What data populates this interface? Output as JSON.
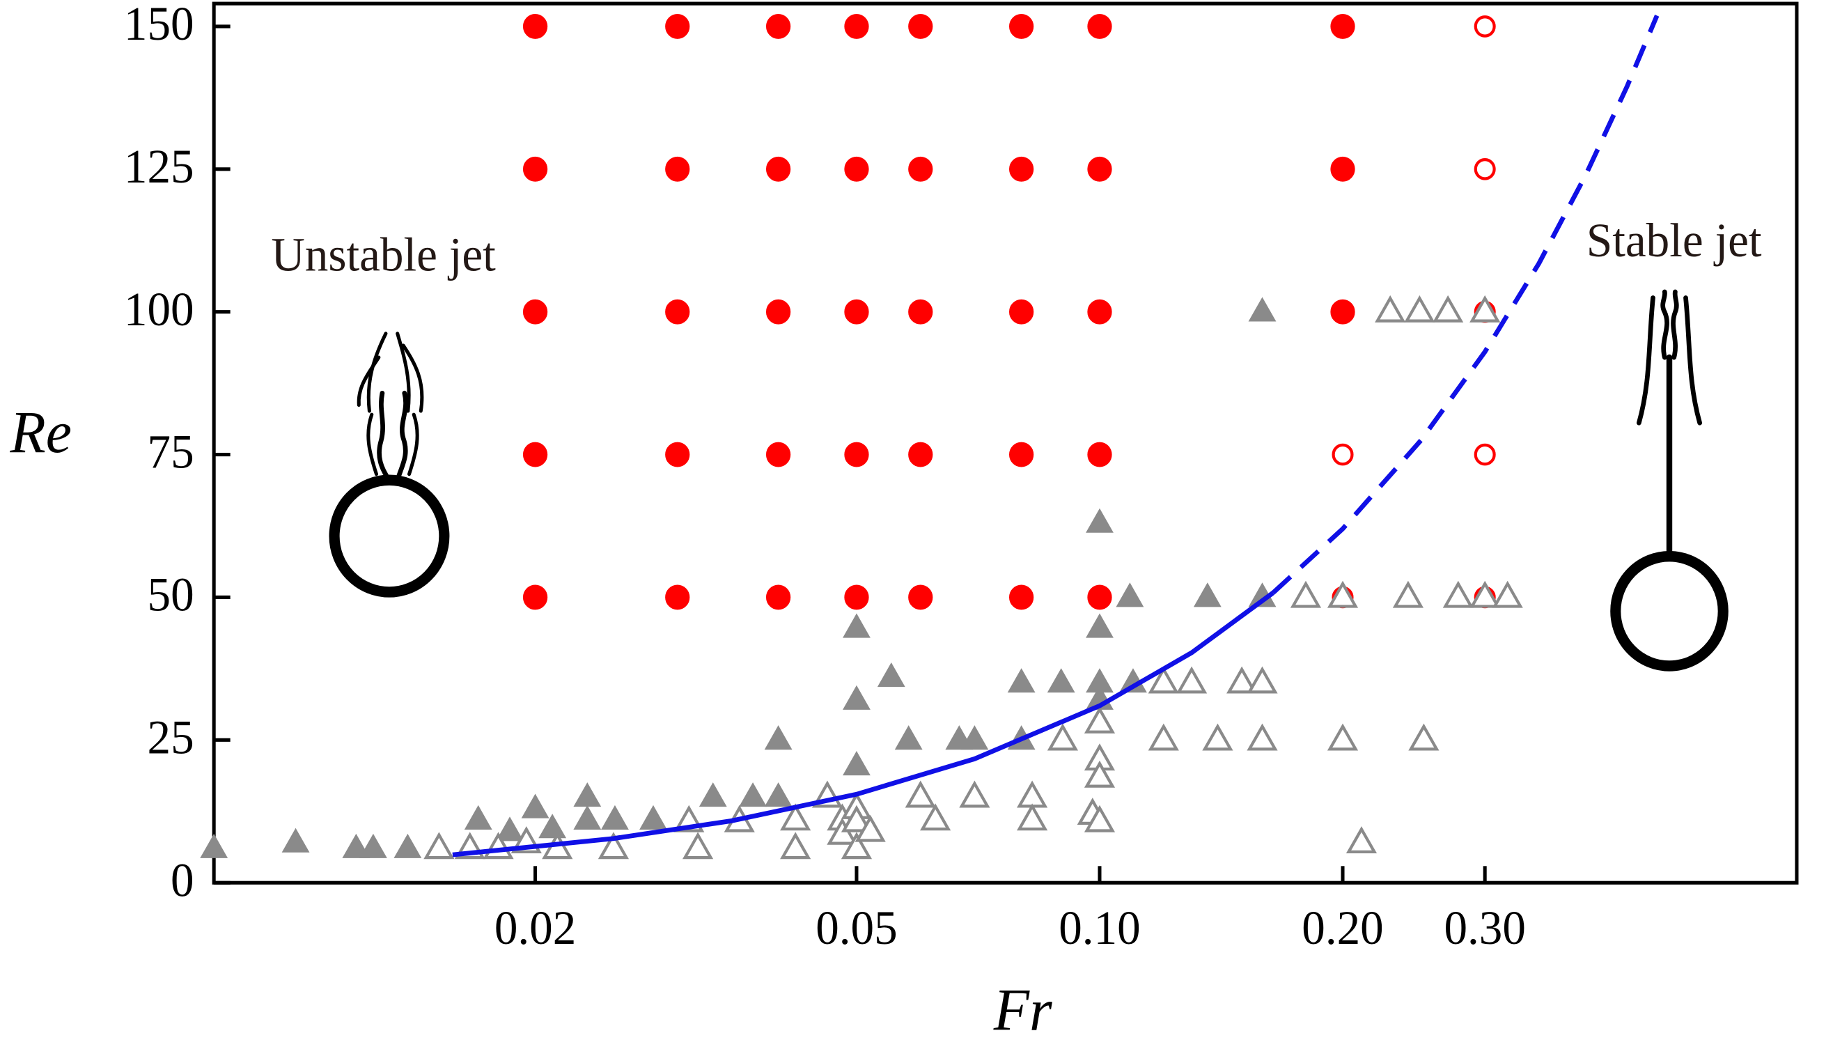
{
  "chart_data": {
    "type": "scatter",
    "xlabel": "Fr",
    "ylabel": "Re",
    "xscale": "log",
    "xlim": [
      0.008,
      0.73
    ],
    "ylim": [
      0,
      154
    ],
    "xticks": [
      0.02,
      0.05,
      {
        "value": 0.1,
        "label": "0.10"
      },
      {
        "value": 0.2,
        "label": "0.20"
      },
      {
        "value": 0.3,
        "label": "0.30"
      }
    ],
    "yticks": [
      0,
      25,
      50,
      75,
      100,
      125,
      150
    ],
    "grid": false,
    "annotations": [
      {
        "text": "Unstable jet"
      },
      {
        "text": "Stable jet"
      }
    ],
    "series": [
      {
        "type": "scatter",
        "marker": "circle",
        "filled": true,
        "color": "#ff0000",
        "x": [
          0.02,
          0.02,
          0.02,
          0.02,
          0.02,
          0.03,
          0.03,
          0.03,
          0.03,
          0.03,
          0.04,
          0.04,
          0.04,
          0.04,
          0.04,
          0.05,
          0.05,
          0.05,
          0.05,
          0.05,
          0.06,
          0.06,
          0.06,
          0.06,
          0.06,
          0.08,
          0.08,
          0.08,
          0.08,
          0.08,
          0.1,
          0.1,
          0.1,
          0.1,
          0.1,
          0.2,
          0.2,
          0.2
        ],
        "values": [
          150,
          125,
          100,
          75,
          50,
          150,
          125,
          100,
          75,
          50,
          150,
          125,
          100,
          75,
          50,
          150,
          125,
          100,
          75,
          50,
          150,
          125,
          100,
          75,
          50,
          150,
          125,
          100,
          75,
          50,
          150,
          125,
          100,
          75,
          50,
          150,
          125,
          100
        ]
      },
      {
        "type": "scatter",
        "marker": "circle",
        "filled": false,
        "color": "#ff0000",
        "x": [
          0.2,
          0.2,
          0.3,
          0.3,
          0.3,
          0.3,
          0.3
        ],
        "values": [
          75,
          50,
          150,
          125,
          100,
          75,
          50
        ]
      },
      {
        "type": "scatter",
        "marker": "triangle",
        "filled": true,
        "color": "#8a8a8a",
        "x": [
          0.008,
          0.0101,
          0.012,
          0.0126,
          0.0139,
          0.017,
          0.0186,
          0.02,
          0.021,
          0.0232,
          0.0232,
          0.0251,
          0.028,
          0.0332,
          0.0372,
          0.04,
          0.04,
          0.05,
          0.05,
          0.05,
          0.0552,
          0.058,
          0.067,
          0.07,
          0.08,
          0.08,
          0.0896,
          0.1,
          0.1,
          0.1,
          0.1,
          0.109,
          0.11,
          0.136,
          0.159,
          0.159
        ],
        "values": [
          6,
          7,
          6,
          6,
          6,
          11,
          9,
          13,
          9.5,
          15,
          11,
          11,
          11,
          15,
          15,
          25,
          15,
          44.6,
          32,
          20.5,
          36,
          25,
          25,
          25,
          35,
          25,
          35,
          63,
          44.6,
          35,
          32,
          50,
          35,
          50,
          100,
          50
        ]
      },
      {
        "type": "scatter",
        "marker": "triangle",
        "filled": false,
        "color": "#8a8a8a",
        "x": [
          0.0152,
          0.0166,
          0.018,
          0.0195,
          0.0213,
          0.025,
          0.031,
          0.0318,
          0.0358,
          0.042,
          0.042,
          0.046,
          0.048,
          0.048,
          0.05,
          0.05,
          0.05,
          0.052,
          0.06,
          0.0626,
          0.07,
          0.0825,
          0.0825,
          0.09,
          0.098,
          0.1,
          0.1,
          0.1,
          0.1,
          0.12,
          0.13,
          0.12,
          0.14,
          0.15,
          0.159,
          0.159,
          0.18,
          0.2,
          0.2,
          0.211,
          0.229,
          0.249,
          0.27,
          0.3,
          0.241,
          0.278,
          0.3,
          0.32,
          0.252
        ],
        "values": [
          6,
          6,
          6,
          7,
          6,
          6,
          10.7,
          6,
          10.7,
          11,
          6,
          15,
          11,
          8.5,
          13,
          10.7,
          6,
          9,
          15,
          11,
          15,
          15,
          11,
          25,
          12,
          28,
          21.5,
          18.5,
          10.7,
          35,
          35,
          25,
          25,
          35,
          35,
          25,
          50,
          50,
          25,
          7,
          100,
          100,
          100,
          100,
          50,
          50,
          50,
          50,
          25
        ]
      },
      {
        "type": "line",
        "dashed": false,
        "color": "#1010e6",
        "x": [
          0.0158,
          0.025,
          0.035,
          0.05,
          0.07,
          0.1,
          0.13,
          0.164
        ],
        "values": [
          4.9,
          7.75,
          10.85,
          15.5,
          21.7,
          31,
          40.3,
          50.8
        ]
      },
      {
        "type": "line",
        "dashed": true,
        "color": "#1010e6",
        "x": [
          0.164,
          0.2,
          0.25,
          0.3,
          0.35,
          0.4,
          0.45,
          0.49
        ],
        "values": [
          50.8,
          62,
          77.5,
          93,
          108.5,
          124,
          139.5,
          151.9
        ]
      }
    ]
  }
}
